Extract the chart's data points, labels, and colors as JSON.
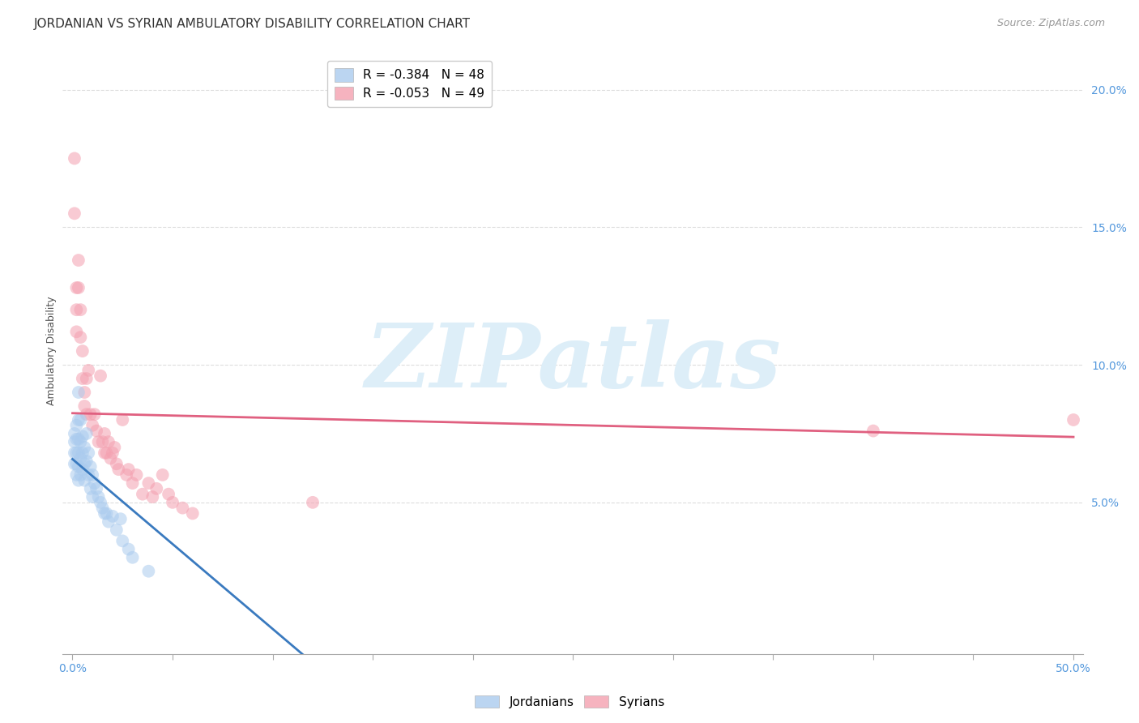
{
  "title": "JORDANIAN VS SYRIAN AMBULATORY DISABILITY CORRELATION CHART",
  "source": "Source: ZipAtlas.com",
  "ylabel": "Ambulatory Disability",
  "background_color": "#ffffff",
  "xlim": [
    -0.005,
    0.505
  ],
  "ylim": [
    -0.005,
    0.215
  ],
  "xtick_vals": [
    0.0,
    0.05,
    0.1,
    0.15,
    0.2,
    0.25,
    0.3,
    0.35,
    0.4,
    0.45,
    0.5
  ],
  "ytick_vals": [
    0.05,
    0.1,
    0.15,
    0.2
  ],
  "tick_color": "#5599dd",
  "grid_color": "#dddddd",
  "jordan_dot_color": "#aacbee",
  "syrian_dot_color": "#f4a0b0",
  "jordan_line_color": "#3a7abf",
  "syrian_line_color": "#e06080",
  "watermark_color": "#ddeef8",
  "jordan_r": -0.384,
  "jordan_n": 48,
  "syrian_r": -0.053,
  "syrian_n": 49,
  "jordanians_x": [
    0.001,
    0.001,
    0.001,
    0.001,
    0.002,
    0.002,
    0.002,
    0.002,
    0.002,
    0.003,
    0.003,
    0.003,
    0.003,
    0.003,
    0.003,
    0.004,
    0.004,
    0.004,
    0.004,
    0.005,
    0.005,
    0.005,
    0.006,
    0.006,
    0.006,
    0.007,
    0.007,
    0.008,
    0.008,
    0.009,
    0.009,
    0.01,
    0.01,
    0.011,
    0.012,
    0.013,
    0.014,
    0.015,
    0.016,
    0.017,
    0.018,
    0.02,
    0.022,
    0.024,
    0.025,
    0.028,
    0.03,
    0.038
  ],
  "jordanians_y": [
    0.075,
    0.072,
    0.068,
    0.064,
    0.078,
    0.073,
    0.068,
    0.064,
    0.06,
    0.09,
    0.08,
    0.073,
    0.068,
    0.063,
    0.058,
    0.08,
    0.072,
    0.066,
    0.06,
    0.074,
    0.068,
    0.062,
    0.07,
    0.064,
    0.058,
    0.075,
    0.065,
    0.068,
    0.06,
    0.063,
    0.055,
    0.06,
    0.052,
    0.057,
    0.055,
    0.052,
    0.05,
    0.048,
    0.046,
    0.046,
    0.043,
    0.045,
    0.04,
    0.044,
    0.036,
    0.033,
    0.03,
    0.025
  ],
  "syrians_x": [
    0.001,
    0.001,
    0.002,
    0.002,
    0.002,
    0.003,
    0.003,
    0.004,
    0.004,
    0.005,
    0.005,
    0.006,
    0.006,
    0.007,
    0.007,
    0.008,
    0.009,
    0.01,
    0.011,
    0.012,
    0.013,
    0.014,
    0.015,
    0.016,
    0.016,
    0.017,
    0.018,
    0.019,
    0.02,
    0.021,
    0.022,
    0.023,
    0.025,
    0.027,
    0.028,
    0.03,
    0.032,
    0.035,
    0.038,
    0.04,
    0.042,
    0.045,
    0.048,
    0.05,
    0.055,
    0.06,
    0.12,
    0.4,
    0.5
  ],
  "syrians_y": [
    0.175,
    0.155,
    0.128,
    0.12,
    0.112,
    0.138,
    0.128,
    0.12,
    0.11,
    0.105,
    0.095,
    0.09,
    0.085,
    0.095,
    0.082,
    0.098,
    0.082,
    0.078,
    0.082,
    0.076,
    0.072,
    0.096,
    0.072,
    0.075,
    0.068,
    0.068,
    0.072,
    0.066,
    0.068,
    0.07,
    0.064,
    0.062,
    0.08,
    0.06,
    0.062,
    0.057,
    0.06,
    0.053,
    0.057,
    0.052,
    0.055,
    0.06,
    0.053,
    0.05,
    0.048,
    0.046,
    0.05,
    0.076,
    0.08
  ],
  "title_fontsize": 11,
  "source_fontsize": 9,
  "tick_fontsize": 10,
  "ylabel_fontsize": 9,
  "legend_fontsize": 11,
  "dot_size": 130,
  "dot_alpha": 0.55
}
